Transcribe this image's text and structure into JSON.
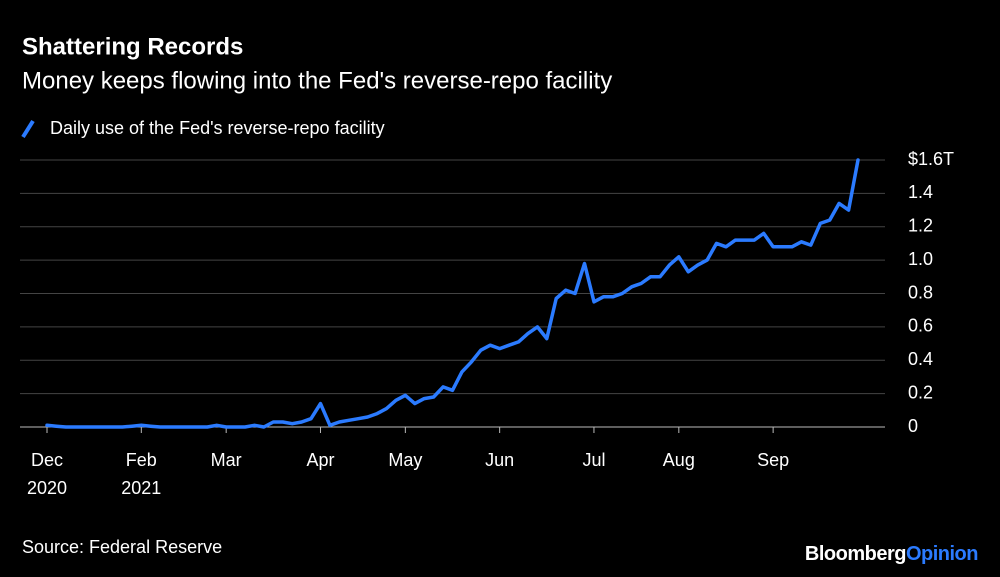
{
  "chart_data": {
    "type": "line",
    "title": "Shattering Records",
    "subtitle": "Money keeps flowing into the Fed's reverse-repo facility",
    "source": "Source: Federal Reserve",
    "brand": "Bloomberg",
    "brand_suffix": "Opinion",
    "categories": [
      "Dec\n2020",
      null,
      null,
      null,
      null,
      null,
      null,
      null,
      null,
      null,
      "Feb\n2021",
      null,
      null,
      null,
      null,
      null,
      null,
      null,
      null,
      "Mar",
      null,
      null,
      null,
      null,
      null,
      null,
      null,
      null,
      null,
      "Apr",
      null,
      null,
      null,
      null,
      null,
      null,
      null,
      null,
      "May",
      null,
      null,
      null,
      null,
      null,
      null,
      null,
      null,
      null,
      "Jun",
      null,
      null,
      null,
      null,
      null,
      null,
      null,
      null,
      null,
      "Jul",
      null,
      null,
      null,
      null,
      null,
      null,
      null,
      null,
      "Aug",
      null,
      null,
      null,
      null,
      null,
      null,
      null,
      null,
      null,
      "Sep",
      null,
      null,
      null,
      null,
      null,
      null,
      null,
      null,
      null
    ],
    "series": [
      {
        "name": "Daily use of the Fed's reverse-repo facility",
        "color": "#2b7bff",
        "values": [
          0.01,
          0.005,
          0,
          0,
          0,
          0,
          0,
          0,
          0,
          0.005,
          0.01,
          0.005,
          0,
          0,
          0,
          0,
          0,
          0,
          0.01,
          0,
          0,
          0,
          0.01,
          0,
          0.03,
          0.03,
          0.02,
          0.03,
          0.05,
          0.14,
          0.01,
          0.03,
          0.04,
          0.05,
          0.06,
          0.08,
          0.11,
          0.16,
          0.19,
          0.14,
          0.17,
          0.18,
          0.24,
          0.22,
          0.33,
          0.39,
          0.46,
          0.49,
          0.47,
          0.49,
          0.51,
          0.56,
          0.6,
          0.53,
          0.77,
          0.82,
          0.8,
          0.98,
          0.75,
          0.78,
          0.78,
          0.8,
          0.84,
          0.86,
          0.9,
          0.9,
          0.97,
          1.02,
          0.93,
          0.97,
          1.0,
          1.1,
          1.08,
          1.12,
          1.12,
          1.12,
          1.16,
          1.08,
          1.08,
          1.08,
          1.11,
          1.09,
          1.22,
          1.24,
          1.34,
          1.3,
          1.6
        ]
      }
    ],
    "ylim": [
      0,
      1.6
    ],
    "yticks": [
      0,
      0.2,
      0.4,
      0.6,
      0.8,
      {
        "value": 1.0,
        "label": "1.0"
      },
      1.2,
      1.4,
      {
        "value": 1.6,
        "label": "$1.6T"
      }
    ],
    "grid": true
  }
}
